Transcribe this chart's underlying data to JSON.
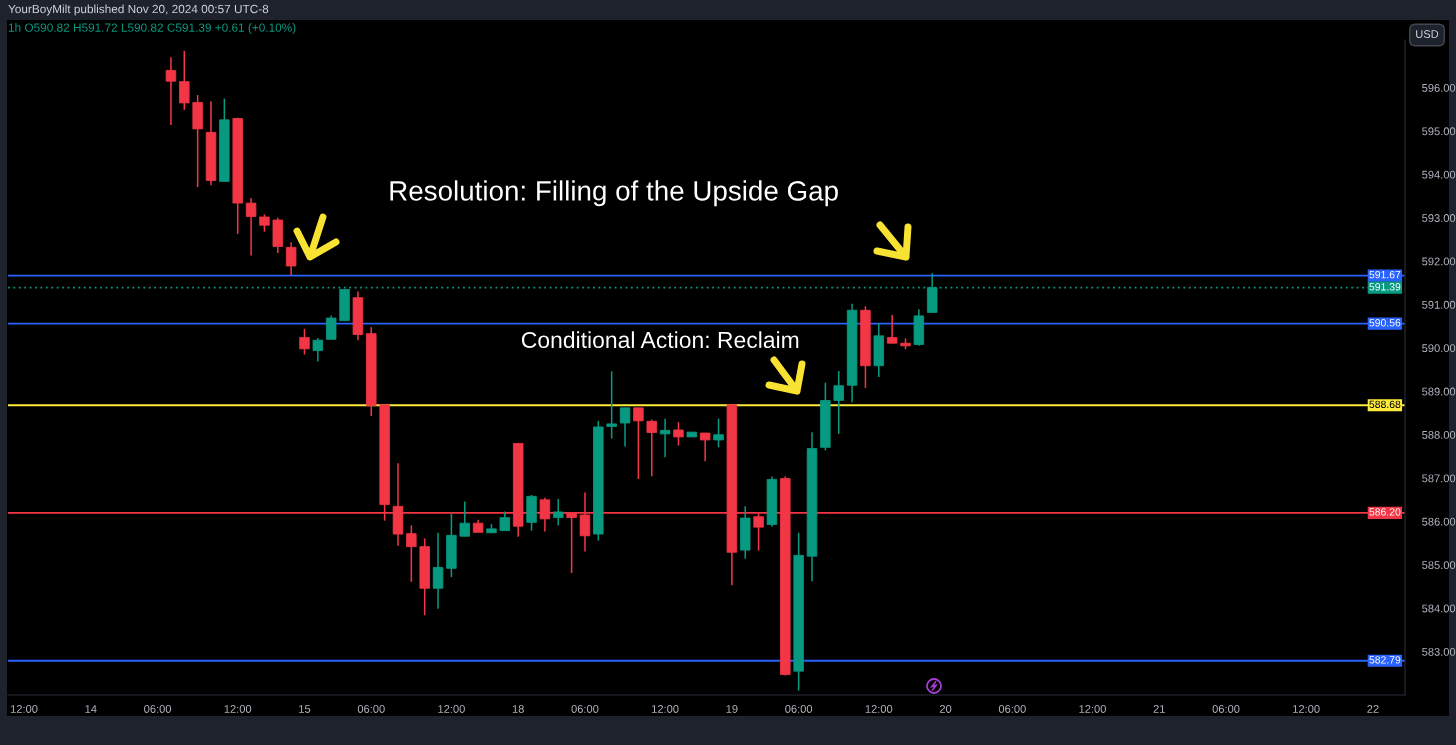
{
  "chart_data": {
    "type": "candlestick",
    "title": "1h O590.82 H591.72 L590.82 C591.39 +0.61 (+0.10%)",
    "categories": [
      "12:00",
      null,
      null,
      null,
      null,
      "14",
      null,
      null,
      null,
      null,
      "06:00",
      null,
      null,
      null,
      null,
      null,
      "12:00",
      null,
      null,
      null,
      null,
      "15",
      null,
      null,
      null,
      null,
      "06:00",
      null,
      null,
      null,
      null,
      null,
      "12:00",
      null,
      null,
      null,
      null,
      "18",
      null,
      null,
      null,
      null,
      "06:00",
      null,
      null,
      null,
      null,
      null,
      "12:00",
      null,
      null,
      null,
      null,
      "19",
      null,
      null,
      null,
      null,
      "06:00",
      null,
      null,
      null,
      null,
      null,
      "12:00",
      null,
      null,
      null,
      null,
      "20",
      null,
      null,
      null,
      null,
      "06:00",
      null,
      null,
      null,
      null,
      null,
      "12:00",
      null,
      null,
      null,
      null,
      "21",
      null,
      null,
      null,
      null,
      "06:00",
      null,
      null,
      null,
      null,
      null,
      "12:00",
      null,
      null,
      null,
      null,
      "22",
      null,
      null
    ],
    "ohlc": [
      null,
      null,
      null,
      null,
      null,
      null,
      null,
      null,
      null,
      null,
      null,
      [
        596.4,
        596.7,
        595.14,
        596.15
      ],
      [
        596.14,
        596.85,
        595.49,
        595.65
      ],
      [
        595.66,
        595.83,
        593.71,
        595.05
      ],
      [
        594.97,
        595.69,
        593.75,
        593.86
      ],
      [
        593.84,
        595.75,
        593.84,
        595.26
      ],
      [
        595.29,
        595.31,
        592.63,
        593.34
      ],
      [
        593.34,
        593.46,
        592.13,
        593.03
      ],
      [
        593.02,
        593.08,
        592.68,
        592.83
      ],
      [
        592.95,
        593.0,
        592.19,
        592.34
      ],
      [
        592.32,
        592.44,
        591.67,
        591.89
      ],
      [
        590.24,
        590.44,
        589.85,
        589.98
      ],
      [
        589.94,
        590.23,
        589.69,
        590.18
      ],
      [
        590.2,
        590.75,
        590.2,
        590.69
      ],
      [
        590.63,
        591.35,
        590.63,
        591.35
      ],
      [
        591.16,
        591.3,
        590.18,
        590.31
      ],
      [
        590.33,
        590.48,
        588.43,
        588.67
      ],
      [
        588.69,
        588.69,
        586.02,
        586.39
      ],
      [
        586.35,
        587.34,
        585.44,
        585.71
      ],
      [
        585.72,
        585.91,
        584.61,
        585.42
      ],
      [
        585.42,
        585.61,
        583.84,
        584.46
      ],
      [
        584.46,
        585.74,
        583.99,
        584.94
      ],
      [
        584.92,
        586.18,
        584.72,
        585.68
      ],
      [
        585.66,
        586.46,
        585.66,
        585.96
      ],
      [
        585.96,
        586.04,
        585.75,
        585.75
      ],
      [
        585.74,
        585.94,
        585.74,
        585.83
      ],
      [
        585.79,
        586.23,
        585.79,
        586.09
      ],
      [
        587.8,
        587.8,
        585.65,
        585.89
      ],
      [
        585.98,
        586.61,
        585.79,
        586.58
      ],
      [
        586.5,
        586.55,
        585.77,
        586.06
      ],
      [
        586.09,
        586.52,
        585.91,
        586.22
      ],
      [
        586.2,
        586.2,
        584.81,
        586.09
      ],
      [
        586.15,
        586.67,
        585.31,
        585.67
      ],
      [
        585.71,
        588.32,
        585.56,
        588.18
      ],
      [
        588.19,
        589.46,
        587.91,
        588.25
      ],
      [
        588.27,
        588.62,
        587.73,
        588.62
      ],
      [
        588.62,
        588.62,
        586.98,
        588.32
      ],
      [
        588.31,
        588.35,
        587.04,
        588.05
      ],
      [
        588.02,
        588.37,
        587.48,
        588.1
      ],
      [
        588.11,
        588.29,
        587.75,
        587.95
      ],
      [
        587.95,
        588.06,
        587.95,
        588.06
      ],
      [
        588.04,
        588.04,
        587.39,
        587.88
      ],
      [
        587.88,
        588.37,
        587.71,
        588.0
      ],
      [
        588.69,
        588.69,
        584.53,
        585.29
      ],
      [
        585.34,
        586.35,
        585.14,
        586.08
      ],
      [
        586.11,
        586.18,
        585.33,
        585.87
      ],
      [
        585.93,
        587.04,
        585.88,
        586.97
      ],
      [
        586.99,
        587.04,
        582.45,
        582.47
      ],
      [
        582.55,
        585.74,
        582.1,
        585.22
      ],
      [
        585.2,
        588.06,
        584.62,
        587.68
      ],
      [
        587.71,
        589.2,
        587.64,
        588.79
      ],
      [
        588.79,
        589.47,
        588.02,
        589.13
      ],
      [
        589.14,
        591.02,
        588.75,
        590.87
      ],
      [
        590.87,
        590.96,
        589.08,
        589.59
      ],
      [
        589.59,
        590.57,
        589.33,
        590.28
      ],
      [
        590.24,
        590.76,
        590.11,
        590.11
      ],
      [
        590.11,
        590.22,
        589.97,
        590.05
      ],
      [
        590.08,
        590.89,
        590.05,
        590.74
      ],
      [
        590.82,
        591.72,
        590.82,
        591.39
      ],
      null,
      null,
      null,
      null,
      null,
      null,
      null,
      null,
      null,
      null,
      null,
      null,
      null,
      null,
      null,
      null,
      null,
      null,
      null,
      null,
      null,
      null,
      null,
      null,
      null,
      null,
      null,
      null,
      null,
      null,
      null,
      null,
      null,
      null,
      null
    ],
    "colors": [
      null,
      null,
      null,
      null,
      null,
      null,
      null,
      null,
      null,
      null,
      null,
      "#f23645",
      "#f23645",
      "#f23645",
      "#f23645",
      "#089981",
      "#f23645",
      "#f23645",
      "#f23645",
      "#f23645",
      "#f23645",
      "#f23645",
      "#089981",
      "#089981",
      "#089981",
      "#f23645",
      "#f23645",
      "#f23645",
      "#f23645",
      "#f23645",
      "#f23645",
      "#089981",
      "#089981",
      "#089981",
      "#f23645",
      "#089981",
      "#089981",
      "#f23645",
      "#089981",
      "#f23645",
      "#089981",
      "#f23645",
      "#f23645",
      "#089981",
      "#089981",
      "#089981",
      "#f23645",
      "#f23645",
      "#089981",
      "#f23645",
      "#089981",
      "#f23645",
      "#089981",
      "#f23645",
      "#089981",
      "#f23645",
      "#089981",
      "#f23645",
      "#089981",
      "#089981",
      "#089981",
      "#089981",
      "#089981",
      "#f23645",
      "#089981",
      "#f23645",
      "#f23645",
      "#089981",
      "#089981",
      null,
      null,
      null,
      null,
      null,
      null,
      null,
      null,
      null,
      null,
      null,
      null,
      null,
      null,
      null,
      null,
      null,
      null,
      null,
      null,
      null,
      null,
      null,
      null,
      null,
      null,
      null,
      null,
      null,
      null,
      null,
      null,
      null,
      null,
      null
    ],
    "ylim": [
      582.0,
      597.1
    ],
    "yticks": [
      {
        "value": 583,
        "label": "583.00"
      },
      {
        "value": 584,
        "label": "584.00"
      },
      {
        "value": 585,
        "label": "585.00"
      },
      {
        "value": 586,
        "label": "586.00"
      },
      {
        "value": 587,
        "label": "587.00"
      },
      {
        "value": 588,
        "label": "588.00"
      },
      {
        "value": 589,
        "label": "589.00"
      },
      {
        "value": 590,
        "label": "590.00"
      },
      {
        "value": 591,
        "label": "591.00"
      },
      {
        "value": 592,
        "label": "592.00"
      },
      {
        "value": 593,
        "label": "593.00"
      },
      {
        "value": 594,
        "label": "594.00"
      },
      {
        "value": 595,
        "label": "595.00"
      },
      {
        "value": 596,
        "label": "596.00"
      }
    ],
    "ref_lines": [
      {
        "axis": "y",
        "value": 591.67,
        "label": "591.67",
        "color": "#2962ff"
      },
      {
        "axis": "y",
        "value": 591.39,
        "label": "591.39",
        "color": "#089981",
        "line_style": "dotted"
      },
      {
        "axis": "y",
        "value": 590.56,
        "label": "590.56",
        "color": "#2962ff"
      },
      {
        "axis": "y",
        "value": 588.68,
        "label": "588.68",
        "color": "#ffeb3b"
      },
      {
        "axis": "y",
        "value": 586.2,
        "label": "586.20",
        "color": "#f23645"
      },
      {
        "axis": "y",
        "value": 582.79,
        "label": "582.79",
        "color": "#2962ff"
      }
    ],
    "annotations": [
      "YourBoyMilt published Nov 20, 2024 00:57 UTC-8",
      "USD",
      "Resolution: Filling of the Upside Gap",
      "Conditional Action: Reclaim"
    ]
  }
}
